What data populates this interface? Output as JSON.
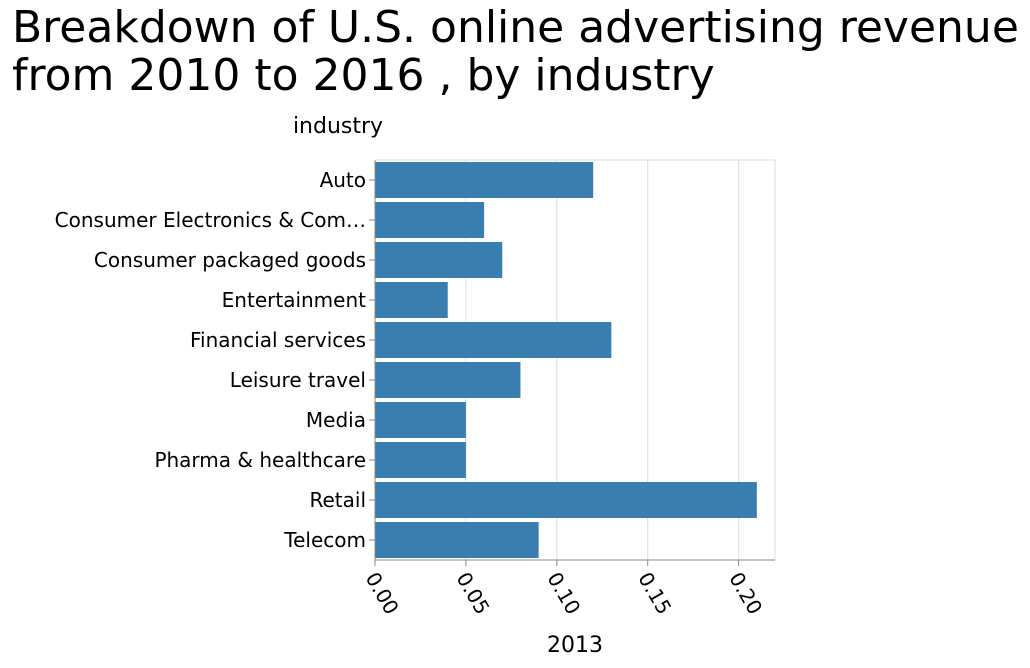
{
  "chart_data": {
    "type": "bar",
    "orientation": "horizontal",
    "title": "Breakdown of U.S. online advertising revenue\nfrom 2010 to 2016 , by industry",
    "ylabel": "industry",
    "xlabel": "2013",
    "categories": [
      "Auto",
      "Consumer Electronics & Com…",
      "Consumer packaged goods",
      "Entertainment",
      "Financial services",
      "Leisure travel",
      "Media",
      "Pharma & healthcare",
      "Retail",
      "Telecom"
    ],
    "values": [
      0.12,
      0.06,
      0.07,
      0.04,
      0.13,
      0.08,
      0.05,
      0.05,
      0.21,
      0.09
    ],
    "xlim": [
      0,
      0.22
    ],
    "xticks": [
      0,
      0.05,
      0.1,
      0.15,
      0.2
    ],
    "xtick_labels": [
      "0.00",
      "0.05",
      "0.10",
      "0.15",
      "0.20"
    ],
    "grid": "vertical",
    "bar_color": "#3a7daf",
    "grid_color": "#dddddd",
    "axis_color": "#888888"
  }
}
